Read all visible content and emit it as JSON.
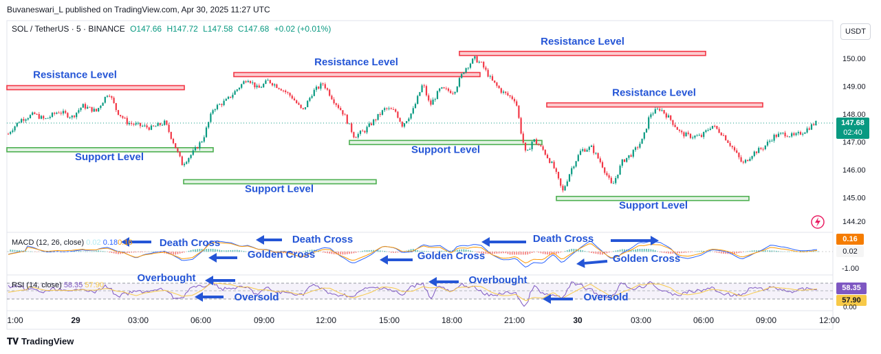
{
  "header": {
    "published": "Buvaneswari_L published on TradingView.com, Apr 30, 2025 11:27 UTC"
  },
  "legend": {
    "symbol": "SOL / TetherUS · 5 · BINANCE",
    "open": "O147.66",
    "high": "H147.72",
    "low": "L147.58",
    "close": "C147.68",
    "change": "+0.02 (+0.01%)"
  },
  "currency": "USDT",
  "footer": {
    "brand": "TradingView",
    "logo": "tradingview-logo"
  },
  "macd_legend": {
    "label": "MACD (12, 26, close)",
    "v1": "0.02",
    "v2": "0.18",
    "v3": "0.16"
  },
  "rsi_legend": {
    "label": "RSI (14, close)",
    "v1": "58.35",
    "v2": "57.90"
  },
  "badges": {
    "price": "147.68",
    "countdown": "02:40",
    "macd_a": "0.16",
    "macd_b": "0.02",
    "rsi_a": "58.35",
    "rsi_b": "57.90",
    "rsi_zero": "0.00"
  },
  "colors": {
    "up": "#089981",
    "down": "#f23645",
    "resistance": "#f23645",
    "support": "#4caf50",
    "annotation": "#2455d6",
    "macd": "#2962ff",
    "signal": "#ff9800",
    "rsi": "#7e57c2"
  },
  "chart_data": {
    "type": "candlestick",
    "symbol": "SOL / TetherUS",
    "interval": "5",
    "exchange": "BINANCE",
    "y_ticks": [
      "150.00",
      "149.00",
      "148.00",
      "147.00",
      "146.00",
      "145.00",
      "144.20"
    ],
    "x_ticks": [
      "1:00",
      "29",
      "03:00",
      "06:00",
      "09:00",
      "12:00",
      "15:00",
      "18:00",
      "21:00",
      "30",
      "03:00",
      "06:00",
      "09:00",
      "12:00"
    ],
    "price_path": [
      [
        0,
        146.85
      ],
      [
        15,
        147.4
      ],
      [
        30,
        147.8
      ],
      [
        50,
        148.0
      ],
      [
        65,
        147.8
      ],
      [
        85,
        148.1
      ],
      [
        105,
        147.9
      ],
      [
        120,
        148.3
      ],
      [
        140,
        148.1
      ],
      [
        158,
        148.8
      ],
      [
        170,
        148.1
      ],
      [
        185,
        147.7
      ],
      [
        200,
        147.6
      ],
      [
        220,
        147.5
      ],
      [
        240,
        147.7
      ],
      [
        252,
        147.0
      ],
      [
        265,
        146.2
      ],
      [
        280,
        146.6
      ],
      [
        295,
        147.1
      ],
      [
        310,
        148.2
      ],
      [
        330,
        148.5
      ],
      [
        345,
        148.9
      ],
      [
        360,
        149.3
      ],
      [
        375,
        148.9
      ],
      [
        390,
        149.2
      ],
      [
        410,
        148.9
      ],
      [
        425,
        148.6
      ],
      [
        440,
        148.1
      ],
      [
        455,
        148.8
      ],
      [
        470,
        149.1
      ],
      [
        485,
        148.5
      ],
      [
        500,
        148.0
      ],
      [
        515,
        147.2
      ],
      [
        530,
        147.4
      ],
      [
        545,
        147.8
      ],
      [
        560,
        148.2
      ],
      [
        575,
        148.1
      ],
      [
        585,
        147.6
      ],
      [
        600,
        148.1
      ],
      [
        615,
        149.1
      ],
      [
        625,
        148.3
      ],
      [
        640,
        148.9
      ],
      [
        660,
        148.8
      ],
      [
        675,
        149.6
      ],
      [
        690,
        150.0
      ],
      [
        700,
        149.8
      ],
      [
        715,
        149.2
      ],
      [
        730,
        148.8
      ],
      [
        750,
        148.5
      ],
      [
        758,
        147.3
      ],
      [
        765,
        146.5
      ],
      [
        775,
        147.1
      ],
      [
        790,
        146.7
      ],
      [
        805,
        146.1
      ],
      [
        818,
        145.2
      ],
      [
        830,
        146.0
      ],
      [
        845,
        146.7
      ],
      [
        860,
        146.8
      ],
      [
        875,
        146.2
      ],
      [
        890,
        145.4
      ],
      [
        905,
        146.3
      ],
      [
        920,
        146.6
      ],
      [
        935,
        147.1
      ],
      [
        945,
        148.0
      ],
      [
        960,
        148.2
      ],
      [
        975,
        147.8
      ],
      [
        990,
        147.3
      ],
      [
        1005,
        147.2
      ],
      [
        1020,
        147.2
      ],
      [
        1035,
        147.6
      ],
      [
        1050,
        147.3
      ],
      [
        1065,
        146.8
      ],
      [
        1080,
        146.2
      ],
      [
        1095,
        146.6
      ],
      [
        1110,
        146.8
      ],
      [
        1125,
        147.2
      ],
      [
        1140,
        147.3
      ],
      [
        1155,
        147.2
      ],
      [
        1170,
        147.4
      ],
      [
        1185,
        147.68
      ]
    ],
    "levels": [
      {
        "kind": "resistance",
        "price": 148.95,
        "x1": 10,
        "x2": 268
      },
      {
        "kind": "resistance",
        "price": 149.42,
        "x1": 340,
        "x2": 698
      },
      {
        "kind": "resistance",
        "price": 150.18,
        "x1": 668,
        "x2": 1026
      },
      {
        "kind": "resistance",
        "price": 148.33,
        "x1": 795,
        "x2": 1109
      },
      {
        "kind": "support",
        "price": 146.72,
        "x1": 10,
        "x2": 310
      },
      {
        "kind": "support",
        "price": 145.57,
        "x1": 267,
        "x2": 547
      },
      {
        "kind": "support",
        "price": 146.98,
        "x1": 508,
        "x2": 788
      },
      {
        "kind": "support",
        "price": 144.97,
        "x1": 809,
        "x2": 1089
      }
    ],
    "annotations": [
      {
        "text": "Resistance Level",
        "x": 109,
        "price": 149.3
      },
      {
        "text": "Resistance Level",
        "x": 518,
        "price": 149.75
      },
      {
        "text": "Resistance Level",
        "x": 847,
        "price": 150.5
      },
      {
        "text": "Resistance Level",
        "x": 951,
        "price": 148.65
      },
      {
        "text": "Support Level",
        "x": 159,
        "price": 146.35
      },
      {
        "text": "Support Level",
        "x": 406,
        "price": 145.2
      },
      {
        "text": "Support Level",
        "x": 648,
        "price": 146.6
      },
      {
        "text": "Support Level",
        "x": 950,
        "price": 144.6
      }
    ],
    "macd_annotations": [
      {
        "text": "Death Cross",
        "x": 276,
        "y": 358
      },
      {
        "text": "Death Cross",
        "x": 469,
        "y": 353
      },
      {
        "text": "Death Cross",
        "x": 819,
        "y": 352
      },
      {
        "text": "Golden Cross",
        "x": 409,
        "y": 375
      },
      {
        "text": "Golden Cross",
        "x": 656,
        "y": 377
      },
      {
        "text": "Golden Cross",
        "x": 940,
        "y": 381
      }
    ],
    "rsi_annotations": [
      {
        "text": "Overbought",
        "x": 242,
        "y": 409
      },
      {
        "text": "Overbought",
        "x": 724,
        "y": 412
      },
      {
        "text": "Oversold",
        "x": 373,
        "y": 437
      },
      {
        "text": "Oversold",
        "x": 881,
        "y": 437
      }
    ],
    "y_range": [
      144.2,
      150.6
    ],
    "macd_values": {
      "macd": 0.18,
      "signal": 0.16,
      "histogram": 0.02
    },
    "rsi_values": {
      "rsi": 58.35,
      "sma": 57.9
    },
    "rsi_levels": [
      70,
      50,
      30
    ],
    "grid": false
  }
}
